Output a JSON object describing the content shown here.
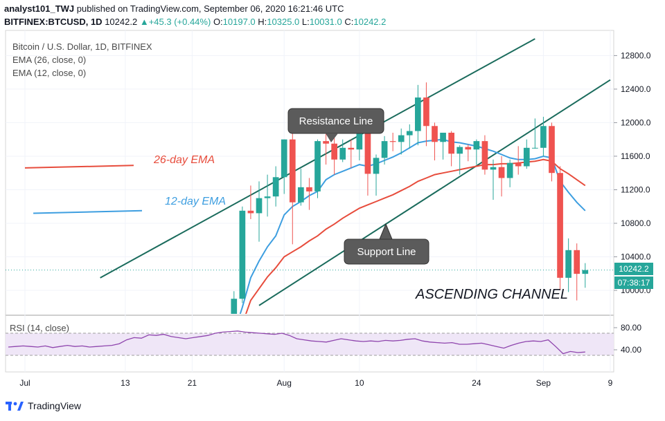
{
  "header": {
    "line1_user": "analyst101_TWJ",
    "line1_text": "published on TradingView.com, September 06, 2020 16:21:46 UTC",
    "symbol": "BITFINEX:BTCUSD, 1D",
    "last": "10242.2",
    "change": "+45.3 (+0.44%)",
    "o_label": "O:",
    "o": "10197.0",
    "h_label": "H:",
    "h": "10325.0",
    "l_label": "L:",
    "l": "10031.0",
    "c_label": "C:",
    "c": "10242.2"
  },
  "legend": {
    "title": "Bitcoin / U.S. Dollar, 1D, BITFINEX",
    "ema26": "EMA (26, close, 0)",
    "ema12": "EMA (12, close, 0)"
  },
  "annotations": {
    "ema26_label": "26-day EMA",
    "ema12_label": "12-day EMA",
    "resistance": "Resistance Line",
    "support": "Support Line",
    "channel": "ASCENDING CHANNEL"
  },
  "price_tag": {
    "price": "10242.2",
    "countdown": "07:38:17"
  },
  "rsi": {
    "label": "RSI (14, close)",
    "ticks": [
      "80.00",
      "40.00"
    ]
  },
  "brand": {
    "name": "TradingView"
  },
  "colors": {
    "up": "#26a69a",
    "down": "#ef5350",
    "ema26": "#e74c3c",
    "ema12": "#3d9ee0",
    "channel": "#1a6b5c",
    "rsi": "#8e44ad",
    "rsi_band": "#efe6f7"
  },
  "chart_data": {
    "type": "candlestick",
    "y_ticks": [
      12800,
      12400,
      12000,
      11600,
      11200,
      10800,
      10400,
      10000
    ],
    "y_tick_labels": [
      "12800.0",
      "12400.0",
      "12000.0",
      "11600.0",
      "11200.0",
      "10800.0",
      "10400.0",
      "10000.0"
    ],
    "ylim": [
      9720,
      13100
    ],
    "x_labels": [
      {
        "date": "2020-07-01",
        "label": "Jul"
      },
      {
        "date": "2020-07-13",
        "label": "13"
      },
      {
        "date": "2020-07-21",
        "label": "21"
      },
      {
        "date": "2020-08-01",
        "label": "Aug"
      },
      {
        "date": "2020-08-10",
        "label": "10"
      },
      {
        "date": "2020-08-24",
        "label": "24"
      },
      {
        "date": "2020-09-01",
        "label": "Sep"
      },
      {
        "date": "2020-09-09",
        "label": "9"
      }
    ],
    "dates": [
      "2020-07-26",
      "2020-07-27",
      "2020-07-28",
      "2020-07-29",
      "2020-07-30",
      "2020-07-31",
      "2020-08-01",
      "2020-08-02",
      "2020-08-03",
      "2020-08-04",
      "2020-08-05",
      "2020-08-06",
      "2020-08-07",
      "2020-08-08",
      "2020-08-09",
      "2020-08-10",
      "2020-08-11",
      "2020-08-12",
      "2020-08-13",
      "2020-08-14",
      "2020-08-15",
      "2020-08-16",
      "2020-08-17",
      "2020-08-18",
      "2020-08-19",
      "2020-08-20",
      "2020-08-21",
      "2020-08-22",
      "2020-08-23",
      "2020-08-24",
      "2020-08-25",
      "2020-08-26",
      "2020-08-27",
      "2020-08-28",
      "2020-08-29",
      "2020-08-30",
      "2020-08-31",
      "2020-09-01",
      "2020-09-02",
      "2020-09-03",
      "2020-09-04",
      "2020-09-05",
      "2020-09-06"
    ],
    "open": [
      9700,
      9900,
      10950,
      10920,
      11100,
      11120,
      11350,
      11800,
      11050,
      11230,
      11180,
      11780,
      11750,
      11560,
      11700,
      11680,
      11900,
      11390,
      11580,
      11780,
      11770,
      11850,
      11900,
      12300,
      11960,
      11770,
      11880,
      11630,
      11710,
      11680,
      11780,
      11440,
      11470,
      11340,
      11520,
      11480,
      11700,
      11700,
      11960,
      11400,
      10150,
      10480,
      10197
    ],
    "high": [
      9990,
      11000,
      11250,
      11300,
      11380,
      11480,
      11800,
      12100,
      11450,
      11340,
      11800,
      11900,
      11820,
      11800,
      11800,
      12080,
      12050,
      11620,
      11840,
      11880,
      11930,
      11980,
      12450,
      12480,
      12000,
      11880,
      11900,
      11730,
      11740,
      11800,
      11850,
      11560,
      11600,
      11560,
      11720,
      11800,
      12050,
      12070,
      12000,
      11480,
      10620,
      10560,
      10325
    ],
    "low": [
      9650,
      9850,
      10850,
      10580,
      10880,
      11000,
      11150,
      10550,
      11010,
      10960,
      11100,
      11500,
      11380,
      11530,
      11460,
      11550,
      11130,
      11130,
      11500,
      11660,
      11620,
      11690,
      11730,
      11720,
      11550,
      11560,
      11480,
      11380,
      11540,
      11500,
      11380,
      11080,
      11120,
      11230,
      11380,
      11450,
      11690,
      11600,
      11300,
      10000,
      9980,
      9880,
      10031
    ],
    "close": [
      9900,
      10950,
      10920,
      11100,
      11120,
      11350,
      11800,
      11050,
      11230,
      11180,
      11780,
      11750,
      11560,
      11700,
      11680,
      11900,
      11390,
      11580,
      11780,
      11770,
      11850,
      11900,
      12300,
      11960,
      11770,
      11880,
      11630,
      11710,
      11680,
      11780,
      11440,
      11470,
      11340,
      11520,
      11480,
      11700,
      11700,
      11960,
      11400,
      10150,
      10480,
      10197,
      10242
    ],
    "ema12": [
      9490,
      9800,
      10150,
      10350,
      10520,
      10650,
      10900,
      11000,
      11060,
      11130,
      11180,
      11320,
      11380,
      11420,
      11460,
      11500,
      11480,
      11510,
      11550,
      11590,
      11640,
      11700,
      11760,
      11780,
      11790,
      11800,
      11770,
      11760,
      11740,
      11720,
      11690,
      11660,
      11620,
      11580,
      11560,
      11560,
      11570,
      11600,
      11580,
      11300,
      11170,
      11050,
      10950
    ],
    "ema26": [
      9380,
      9600,
      9880,
      10020,
      10160,
      10270,
      10400,
      10460,
      10520,
      10590,
      10650,
      10730,
      10790,
      10860,
      10920,
      10980,
      11020,
      11060,
      11100,
      11140,
      11190,
      11240,
      11300,
      11340,
      11380,
      11400,
      11420,
      11440,
      11460,
      11480,
      11500,
      11500,
      11510,
      11510,
      11520,
      11530,
      11540,
      11560,
      11540,
      11450,
      11390,
      11320,
      11250
    ],
    "rsi": [
      45,
      46,
      47,
      46,
      45,
      47,
      44,
      46,
      48,
      46,
      47,
      45,
      46,
      47,
      48,
      51,
      58,
      62,
      61,
      67,
      66,
      68,
      64,
      62,
      60,
      62,
      64,
      66,
      70,
      72,
      73,
      74,
      72,
      71,
      70,
      69,
      68,
      70,
      66,
      60,
      58,
      56,
      55,
      54,
      57,
      60,
      58,
      56,
      55,
      56,
      55,
      57,
      56,
      57,
      59,
      60,
      56,
      54,
      53,
      52,
      53,
      50,
      50,
      51,
      52,
      49,
      46,
      43,
      48,
      52,
      55,
      56,
      55,
      58,
      46,
      33,
      37,
      35,
      36
    ],
    "annotation_lines": {
      "resistance": {
        "from": {
          "date": "2020-07-10",
          "price": 10150
        },
        "to": {
          "date": "2020-08-31",
          "price": 13000
        }
      },
      "support": {
        "from": {
          "date": "2020-07-29",
          "price": 9820
        },
        "to": {
          "date": "2020-09-09",
          "price": 12510
        }
      },
      "ema26_stub": {
        "from": {
          "date": "2020-07-01",
          "price": 11460
        },
        "to": {
          "date": "2020-07-14",
          "price": 11490
        }
      },
      "ema12_stub": {
        "from": {
          "date": "2020-07-02",
          "price": 10920
        },
        "to": {
          "date": "2020-07-15",
          "price": 10950
        }
      }
    }
  }
}
